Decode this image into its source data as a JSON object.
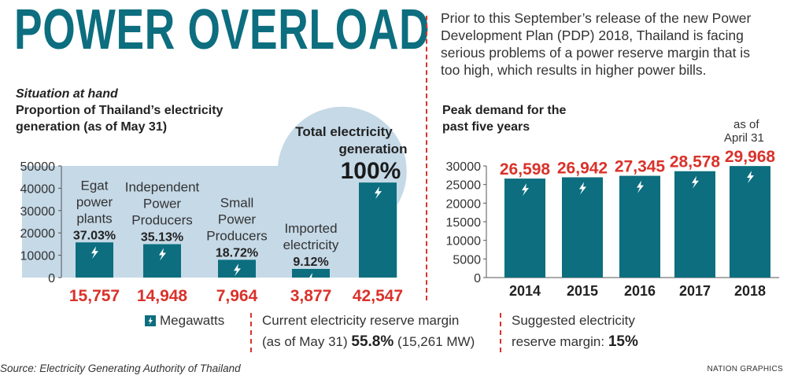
{
  "title": "POWER OVERLOAD",
  "intro": "Prior to this September’s release of the new Power Development Plan (PDP) 2018, Thailand is facing serious problems of a power reserve margin that is too high, which results in higher power bills.",
  "left_section": {
    "kicker": "Situation at hand",
    "heading_line1": "Proportion of Thailand’s electricity",
    "heading_line2": "generation (as of May 31)"
  },
  "right_section": {
    "heading_line1": "Peak demand for the",
    "heading_line2": "past five years",
    "note_line1": "as of",
    "note_line2": "April 31"
  },
  "legend": {
    "unit_label": "Megawatts",
    "reserve_line1": "Current electricity reserve margin",
    "reserve_line2_prefix": "(as of May 31)",
    "reserve_value": "55.8%",
    "reserve_mw": "(15,261 MW)",
    "suggested_line1": "Suggested electricity",
    "suggested_line2_prefix": "reserve margin:",
    "suggested_value": "15%"
  },
  "footer": {
    "source": "Source: Electricity Generating Authority of Thailand",
    "credit": "NATION GRAPHICS"
  },
  "colors": {
    "bar": "#0c6e7f",
    "value_red": "#d9322b",
    "highlight_blob": "#c5d9e7",
    "title": "#0c6e7f"
  },
  "chart_data": [
    {
      "type": "bar",
      "title": "Proportion of Thailand’s electricity generation (as of May 31)",
      "categories": [
        "Egat power plants",
        "Independent Power Producers",
        "Small Power Producers",
        "Imported electricity",
        "Total electricity generation"
      ],
      "category_lines": [
        [
          "Egat",
          "power",
          "plants"
        ],
        [
          "Independent",
          "Power",
          "Producers"
        ],
        [
          "Small",
          "Power",
          "Producers"
        ],
        [
          "Imported",
          "electricity"
        ],
        [
          "Total electricity",
          "generation"
        ]
      ],
      "percents": [
        "37.03%",
        "35.13%",
        "18.72%",
        "9.12%",
        "100%"
      ],
      "values": [
        15757,
        14948,
        7964,
        3877,
        42547
      ],
      "value_labels": [
        "15,757",
        "14,948",
        "7,964",
        "3,877",
        "42,547"
      ],
      "unit": "Megawatts",
      "ylim": [
        0,
        50000
      ],
      "yticks": [
        0,
        10000,
        20000,
        30000,
        40000,
        50000
      ],
      "grid": false
    },
    {
      "type": "bar",
      "title": "Peak demand for the past five years",
      "categories": [
        "2014",
        "2015",
        "2016",
        "2017",
        "2018"
      ],
      "values": [
        26598,
        26942,
        27345,
        28578,
        29968
      ],
      "value_labels": [
        "26,598",
        "26,942",
        "27,345",
        "28,578",
        "29,968"
      ],
      "unit": "Megawatts",
      "ylim": [
        0,
        30000
      ],
      "yticks": [
        0,
        5000,
        10000,
        15000,
        20000,
        25000,
        30000
      ],
      "grid": false
    }
  ]
}
